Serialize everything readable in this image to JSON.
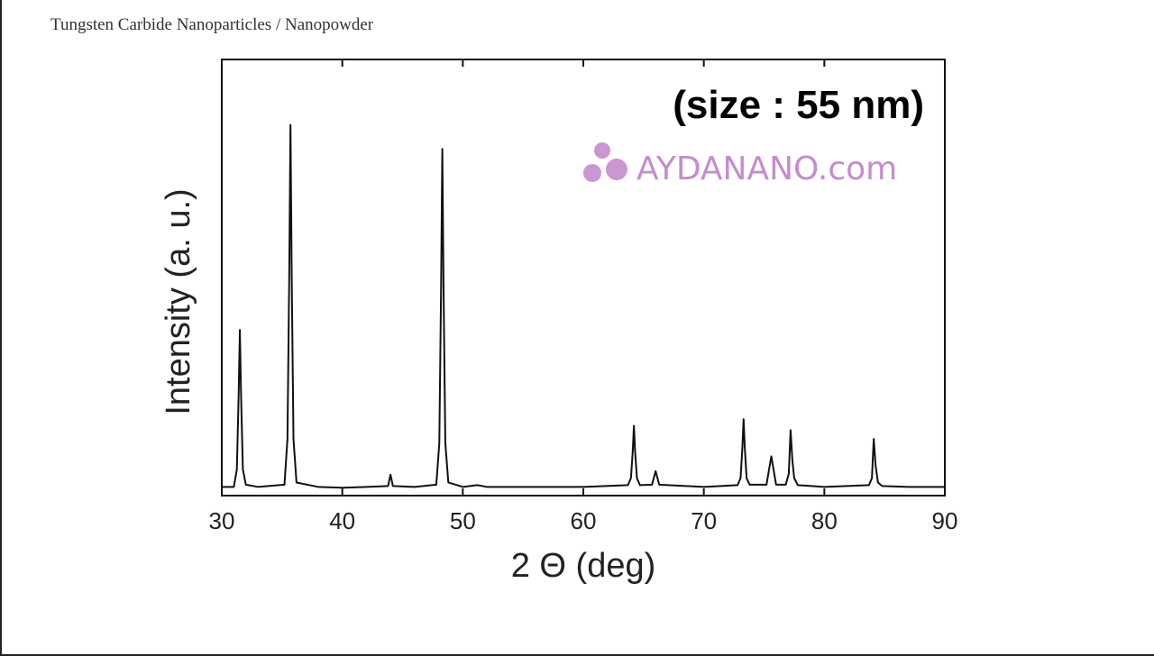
{
  "chart_data": {
    "type": "line",
    "title": "Tungsten Carbide Nanoparticles / Nanopowder",
    "annotation": "(size : 55 nm)",
    "watermark": "AYDANANO.com",
    "xlabel": "2 Θ (deg)",
    "ylabel": "Intensity (a. u.)",
    "xlim": [
      30,
      90
    ],
    "xticks": [
      30,
      40,
      50,
      60,
      70,
      80,
      90
    ],
    "ylim": [
      0,
      100
    ],
    "x": [
      30,
      31,
      31.25,
      31.4,
      31.5,
      31.6,
      31.75,
      32,
      33,
      35.2,
      35.45,
      35.6,
      35.7,
      35.8,
      35.95,
      36.2,
      38,
      40,
      42,
      43.8,
      44,
      44.2,
      46,
      47.8,
      48.05,
      48.2,
      48.3,
      48.4,
      48.55,
      48.8,
      50,
      51.2,
      52,
      56,
      60,
      63.7,
      63.95,
      64.1,
      64.2,
      64.3,
      64.45,
      64.7,
      65.7,
      66,
      66.3,
      70,
      72.8,
      73.05,
      73.2,
      73.3,
      73.4,
      73.55,
      73.8,
      75.2,
      75.6,
      76,
      76.8,
      77.05,
      77.2,
      77.35,
      77.5,
      77.8,
      80,
      83.7,
      83.95,
      84.1,
      84.25,
      84.45,
      84.8,
      87,
      90
    ],
    "series": [
      {
        "color": "#111111",
        "values": [
          2,
          2,
          6,
          23,
          38,
          23,
          6,
          2.5,
          2,
          2.5,
          13,
          51,
          85,
          51,
          13,
          3,
          2,
          1.8,
          2,
          2.2,
          4.8,
          2.2,
          2,
          2.5,
          12,
          48,
          79.5,
          48,
          12,
          3,
          2,
          2.4,
          2,
          2,
          2,
          2.4,
          4,
          10,
          16,
          10,
          4,
          2.4,
          2.5,
          5.6,
          2.5,
          2,
          2.4,
          4,
          11,
          17.5,
          11,
          4,
          2.5,
          2.5,
          9,
          2.5,
          2.5,
          5,
          15,
          8,
          4,
          2.4,
          2,
          2.4,
          4,
          13,
          7,
          3,
          2.2,
          2,
          2
        ]
      }
    ]
  }
}
